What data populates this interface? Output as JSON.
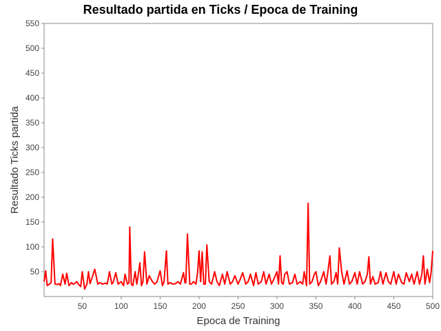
{
  "chart_data": {
    "type": "line",
    "title": "Resultado partida en Ticks / Epoca de Training",
    "xlabel": "Epoca de Training",
    "ylabel": "Resultado Ticks partida",
    "xlim": [
      1,
      500
    ],
    "ylim": [
      0,
      550
    ],
    "xticks": [
      50,
      100,
      150,
      200,
      250,
      300,
      350,
      400,
      450,
      500
    ],
    "yticks": [
      50,
      100,
      150,
      200,
      250,
      300,
      350,
      400,
      450,
      500,
      550
    ],
    "grid": false,
    "legend": "none",
    "colors": {
      "line": "#ff0000",
      "plot_background": "#ffffff",
      "axis": "#888888"
    },
    "series": [
      {
        "x": [
          1,
          3,
          5,
          8,
          10,
          12,
          15,
          18,
          20,
          22,
          25,
          28,
          30,
          33,
          36,
          38,
          40,
          43,
          45,
          48,
          50,
          53,
          56,
          58,
          60,
          63,
          66,
          70,
          73,
          76,
          80,
          82,
          85,
          88,
          90,
          93,
          96,
          100,
          103,
          105,
          108,
          110,
          111,
          113,
          115,
          118,
          120,
          122,
          124,
          126,
          128,
          130,
          133,
          136,
          140,
          143,
          146,
          150,
          153,
          155,
          158,
          160,
          163,
          166,
          170,
          173,
          176,
          180,
          182,
          183,
          185,
          188,
          190,
          193,
          196,
          198,
          200,
          202,
          204,
          206,
          208,
          210,
          213,
          216,
          220,
          223,
          226,
          230,
          233,
          236,
          240,
          243,
          246,
          250,
          253,
          256,
          260,
          263,
          266,
          270,
          273,
          276,
          280,
          283,
          286,
          290,
          293,
          296,
          300,
          302,
          304,
          306,
          308,
          310,
          313,
          316,
          320,
          323,
          326,
          330,
          333,
          335,
          338,
          340,
          342,
          345,
          348,
          350,
          353,
          356,
          360,
          363,
          365,
          368,
          370,
          373,
          376,
          378,
          380,
          383,
          386,
          390,
          393,
          396,
          400,
          403,
          406,
          410,
          413,
          416,
          418,
          420,
          423,
          426,
          430,
          433,
          436,
          440,
          443,
          446,
          450,
          453,
          456,
          460,
          463,
          466,
          470,
          473,
          476,
          480,
          483,
          486,
          488,
          490,
          493,
          496,
          498,
          500
        ],
        "values": [
          30,
          52,
          22,
          25,
          28,
          116,
          25,
          24,
          26,
          22,
          45,
          25,
          47,
          22,
          28,
          25,
          26,
          30,
          25,
          20,
          50,
          15,
          25,
          50,
          26,
          40,
          55,
          25,
          28,
          25,
          27,
          25,
          50,
          25,
          30,
          48,
          25,
          30,
          22,
          45,
          25,
          28,
          140,
          25,
          22,
          50,
          25,
          45,
          68,
          22,
          30,
          90,
          25,
          42,
          30,
          25,
          30,
          52,
          22,
          30,
          92,
          25,
          28,
          25,
          26,
          30,
          25,
          48,
          27,
          28,
          126,
          25,
          25,
          30,
          25,
          48,
          92,
          30,
          90,
          25,
          25,
          104,
          30,
          25,
          50,
          30,
          22,
          45,
          25,
          50,
          25,
          30,
          42,
          25,
          35,
          48,
          25,
          30,
          45,
          22,
          48,
          25,
          30,
          50,
          25,
          45,
          25,
          35,
          50,
          25,
          82,
          28,
          25,
          45,
          50,
          25,
          28,
          45,
          25,
          30,
          25,
          50,
          22,
          188,
          25,
          30,
          45,
          50,
          22,
          30,
          50,
          25,
          45,
          82,
          25,
          30,
          48,
          25,
          98,
          50,
          25,
          52,
          25,
          30,
          48,
          25,
          50,
          25,
          30,
          45,
          80,
          25,
          40,
          25,
          28,
          50,
          25,
          48,
          30,
          25,
          50,
          25,
          45,
          28,
          25,
          48,
          30,
          45,
          25,
          50,
          25,
          45,
          82,
          25,
          55,
          28,
          50,
          92
        ]
      }
    ]
  }
}
